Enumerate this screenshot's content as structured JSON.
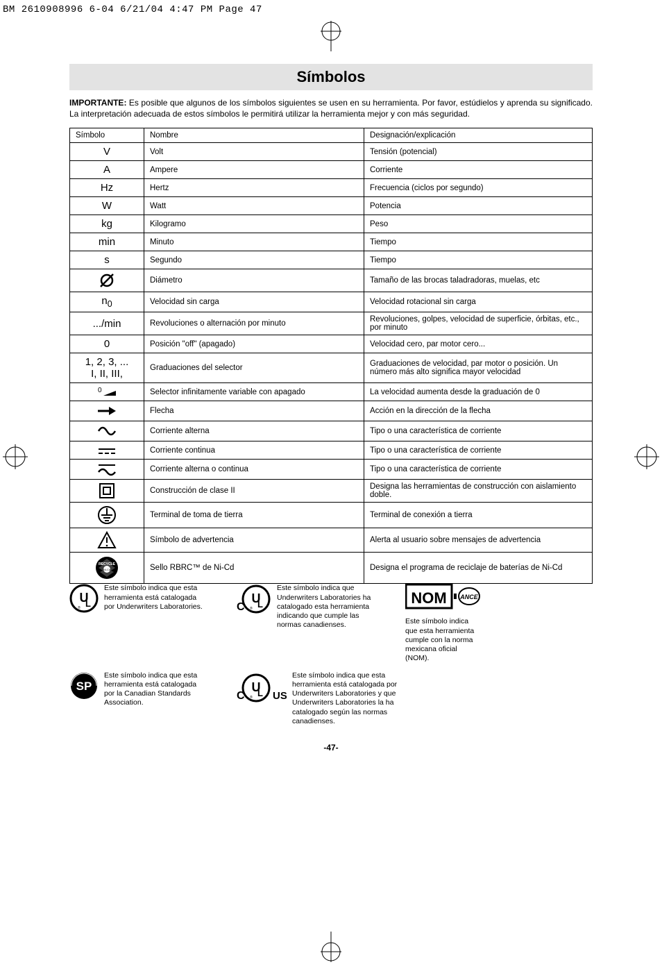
{
  "print_header": "BM 2610908996 6-04  6/21/04  4:47 PM  Page 47",
  "title": "Símbolos",
  "importante_label": "IMPORTANTE:",
  "intro_text": "  Es posible que algunos de los símbolos siguientes se usen en su herramienta.  Por favor, estúdielos y aprenda su significado.  La interpretación adecuada de estos símbolos le permitirá utilizar la herramienta mejor y con más seguridad.",
  "table": {
    "headers": [
      "Símbolo",
      "Nombre",
      "Designación/explicación"
    ],
    "rows": [
      {
        "sym_text": "V",
        "nombre": "Volt",
        "desig": "Tensión (potencial)"
      },
      {
        "sym_text": "A",
        "nombre": "Ampere",
        "desig": "Corriente"
      },
      {
        "sym_text": "Hz",
        "nombre": "Hertz",
        "desig": "Frecuencia (ciclos por segundo)"
      },
      {
        "sym_text": "W",
        "nombre": "Watt",
        "desig": "Potencia"
      },
      {
        "sym_text": "kg",
        "nombre": "Kilogramo",
        "desig": "Peso"
      },
      {
        "sym_text": "min",
        "nombre": "Minuto",
        "desig": "Tiempo"
      },
      {
        "sym_text": "s",
        "nombre": "Segundo",
        "desig": "Tiempo"
      },
      {
        "sym_svg": "diameter",
        "nombre": "Diámetro",
        "desig": "Tamaño de las brocas taladradoras, muelas, etc"
      },
      {
        "sym_html": "n<sub>0</sub>",
        "nombre": "Velocidad sin carga",
        "desig": "Velocidad rotacional sin carga"
      },
      {
        "sym_text": ".../min",
        "nombre": "Revoluciones o alternación por minuto",
        "desig": "Revoluciones, golpes, velocidad de superficie, órbitas, etc., por minuto"
      },
      {
        "sym_text": "0",
        "nombre": "Posición \"off\" (apagado)",
        "desig": "Velocidad cero, par motor cero..."
      },
      {
        "sym_html": "1, 2, 3, ...<br>I, II, III,",
        "nombre": "Graduaciones del selector",
        "desig": "Graduaciones de velocidad, par motor o posición.  Un número más alto significa mayor velocidad"
      },
      {
        "sym_svg": "selector",
        "nombre": "Selector infinitamente variable con apagado",
        "desig": "La velocidad aumenta desde la graduación de 0"
      },
      {
        "sym_svg": "arrow",
        "nombre": "Flecha",
        "desig": "Acción en la dirección de la flecha"
      },
      {
        "sym_svg": "ac",
        "nombre": "Corriente alterna",
        "desig": "Tipo o una característica de corriente"
      },
      {
        "sym_svg": "dc",
        "nombre": "Corriente continua",
        "desig": "Tipo o una característica de corriente"
      },
      {
        "sym_svg": "acdc",
        "nombre": "Corriente alterna o continua",
        "desig": "Tipo o una característica de corriente"
      },
      {
        "sym_svg": "class2",
        "nombre": "Construcción de clase II",
        "desig": "Designa las herramientas de construcción con aislamiento doble."
      },
      {
        "sym_svg": "earth",
        "nombre": "Terminal de toma de tierra",
        "desig": "Terminal de conexión a tierra"
      },
      {
        "sym_svg": "warning",
        "nombre": "Símbolo de advertencia",
        "desig": "Alerta al usuario sobre mensajes de advertencia"
      },
      {
        "sym_svg": "rbrc",
        "nombre": "Sello RBRC™ de Ni-Cd",
        "desig": "Designa el programa de reciclaje de baterías de Ni-Cd"
      }
    ]
  },
  "logos": {
    "ul_text": "Este símbolo indica que esta herramienta está catalogada por Underwriters Laboratories.",
    "cul_text": "Este símbolo indica que Underwriters Laboratories ha catalogado esta herramienta indicando que cumple las normas canadienses.",
    "csa_text": "Este símbolo indica que esta herramienta está catalogada por la Canadian Standards Association.",
    "culus_text": "Este símbolo indica que esta herramienta está catalogada por Underwriters Laboratories y que Underwriters Laboratories la ha catalogado según las normas canadienses.",
    "nom_text": "Este símbolo indica que esta herramienta cumple con la norma mexicana oficial (NOM)."
  },
  "page_number": "-47-",
  "colors": {
    "bg": "#ffffff",
    "text": "#000000",
    "title_bg": "#e3e3e3",
    "border": "#000000"
  }
}
